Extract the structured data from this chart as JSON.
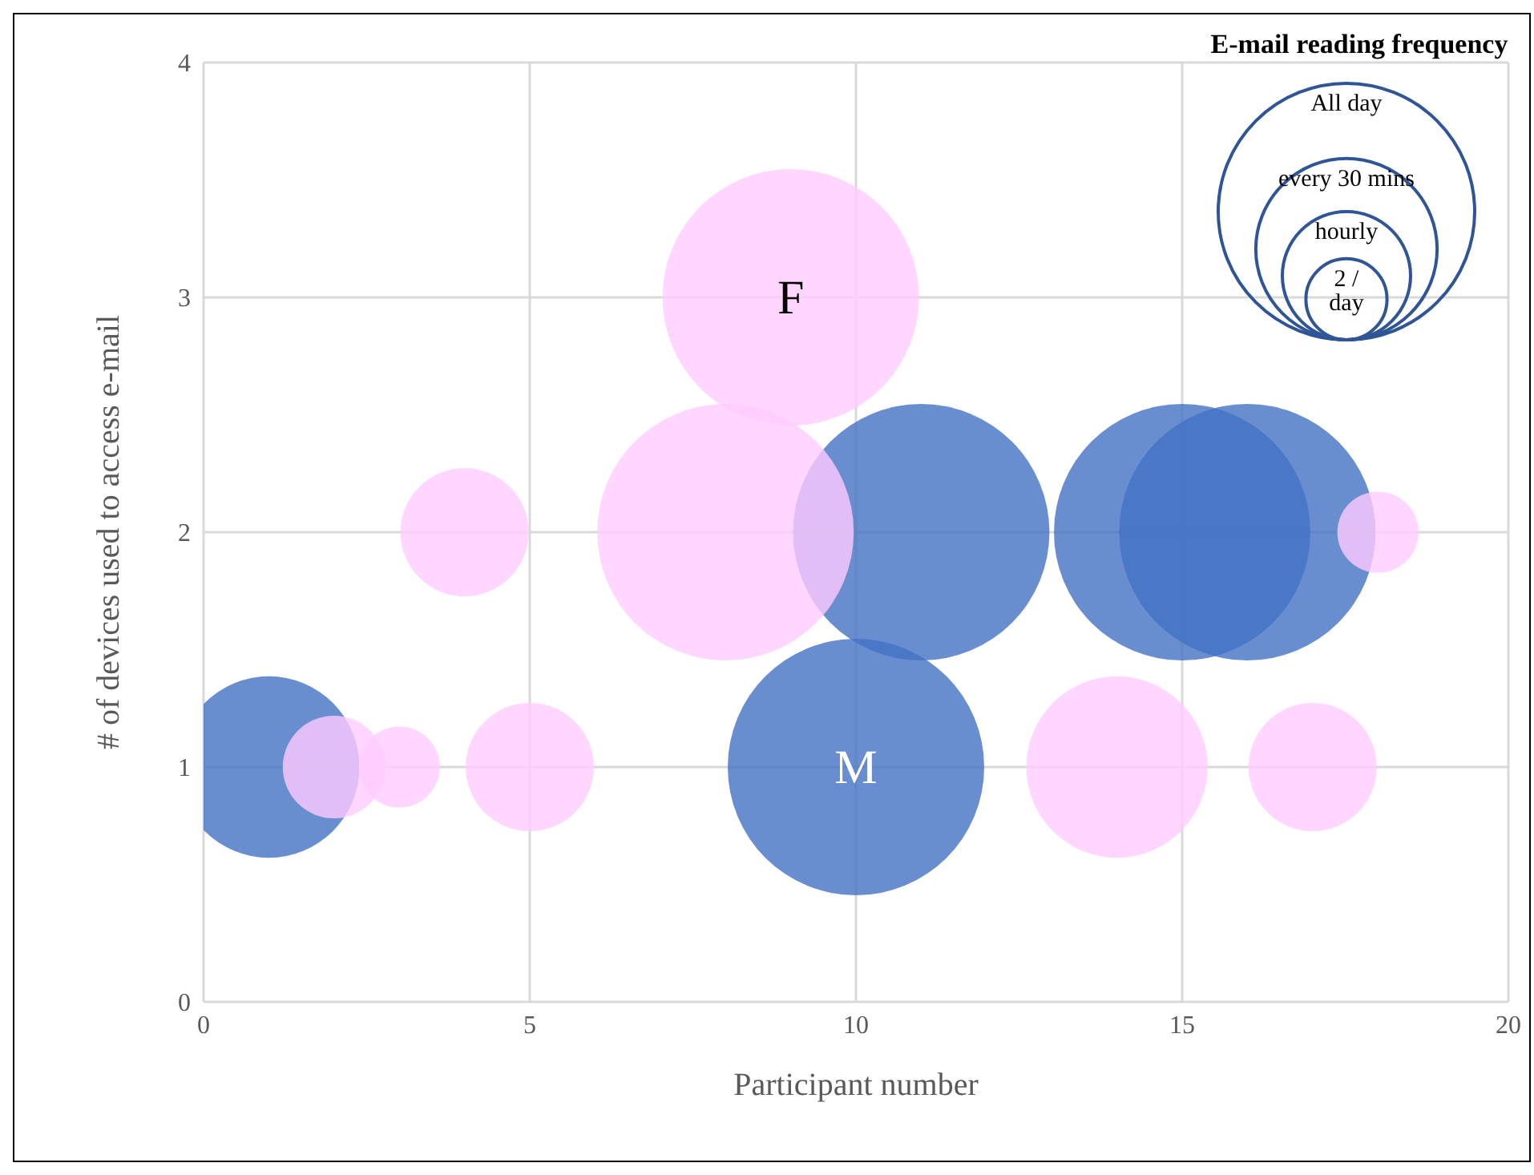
{
  "chart_data": {
    "type": "bubble",
    "xlabel": "Participant number",
    "ylabel": "# of devices used to access e-mail",
    "legend_title": "E-mail reading frequency",
    "xlim": [
      0,
      20
    ],
    "xticks": [
      0,
      5,
      10,
      15,
      20
    ],
    "ylim": [
      0,
      4
    ],
    "yticks": [
      0,
      1,
      2,
      3,
      4
    ],
    "grid": true,
    "size_legend": [
      {
        "value": 1,
        "label": "All day"
      },
      {
        "value": 0.5,
        "label": "every 30 mins"
      },
      {
        "value": 0.25,
        "label": "hourly"
      },
      {
        "value": 0.1,
        "label": "2 / day"
      }
    ],
    "series": [
      {
        "name": "F",
        "color": "#ffccff",
        "x": [
          9,
          8,
          4,
          2,
          3,
          5,
          14,
          17,
          18
        ],
        "values": [
          3,
          2,
          2,
          1,
          1,
          1,
          1,
          1,
          2
        ],
        "sizes": [
          1,
          1,
          0.25,
          0.16,
          0.1,
          0.25,
          0.5,
          0.25,
          0.1
        ]
      },
      {
        "name": "M",
        "color": "#4472c4",
        "x": [
          10,
          1,
          11,
          15,
          16
        ],
        "values": [
          1,
          1,
          2,
          2,
          2
        ],
        "sizes": [
          1,
          0.5,
          1,
          1,
          1
        ]
      }
    ]
  }
}
